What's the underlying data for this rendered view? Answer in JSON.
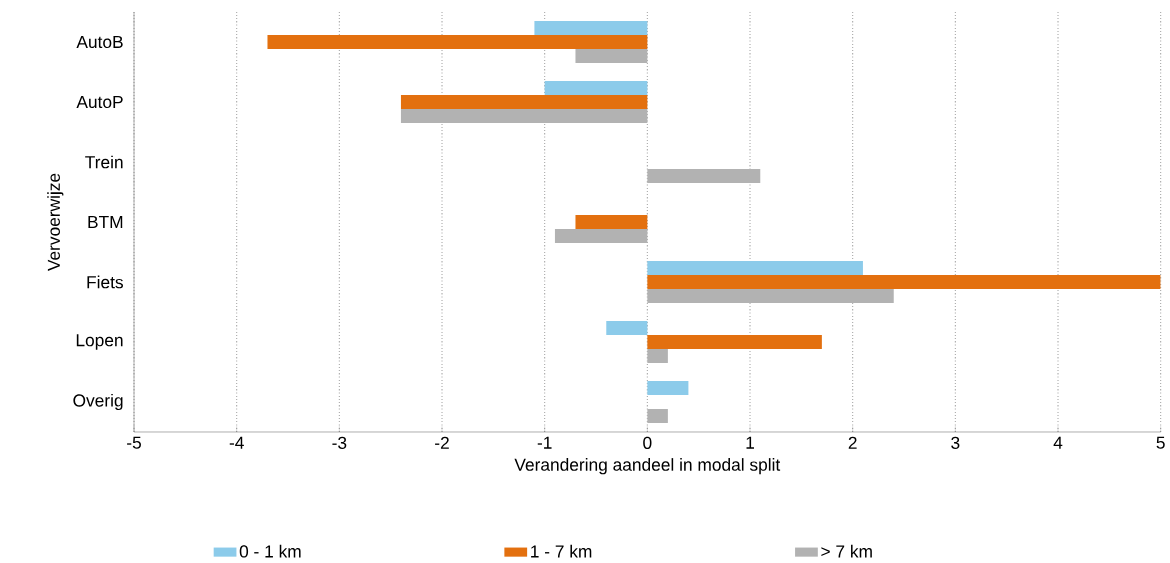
{
  "chart_data": {
    "type": "bar",
    "orientation": "horizontal",
    "xlabel": "Verandering aandeel in modal split",
    "ylabel": "Vervoerwijze",
    "categories": [
      "AutoB",
      "AutoP",
      "Trein",
      "BTM",
      "Fiets",
      "Lopen",
      "Overig"
    ],
    "series": [
      {
        "name": "0 - 1 km",
        "color": "#8ccbea",
        "values": [
          -1.1,
          -1.0,
          0,
          0,
          2.1,
          -0.4,
          0.4
        ]
      },
      {
        "name": "1 - 7 km",
        "color": "#e3700f",
        "values": [
          -3.7,
          -2.4,
          0,
          -0.7,
          5,
          1.7,
          0
        ]
      },
      {
        "name": "> 7 km",
        "color": "#b2b2b2",
        "values": [
          -0.7,
          -2.4,
          1.1,
          -0.9,
          2.4,
          0.2,
          0.2
        ]
      }
    ],
    "xlim": [
      -5,
      5
    ],
    "xticks": [
      -5,
      -4,
      -3,
      -2,
      -1,
      0,
      1,
      2,
      3,
      4,
      5
    ],
    "grid": "x",
    "legend": "bottom"
  }
}
